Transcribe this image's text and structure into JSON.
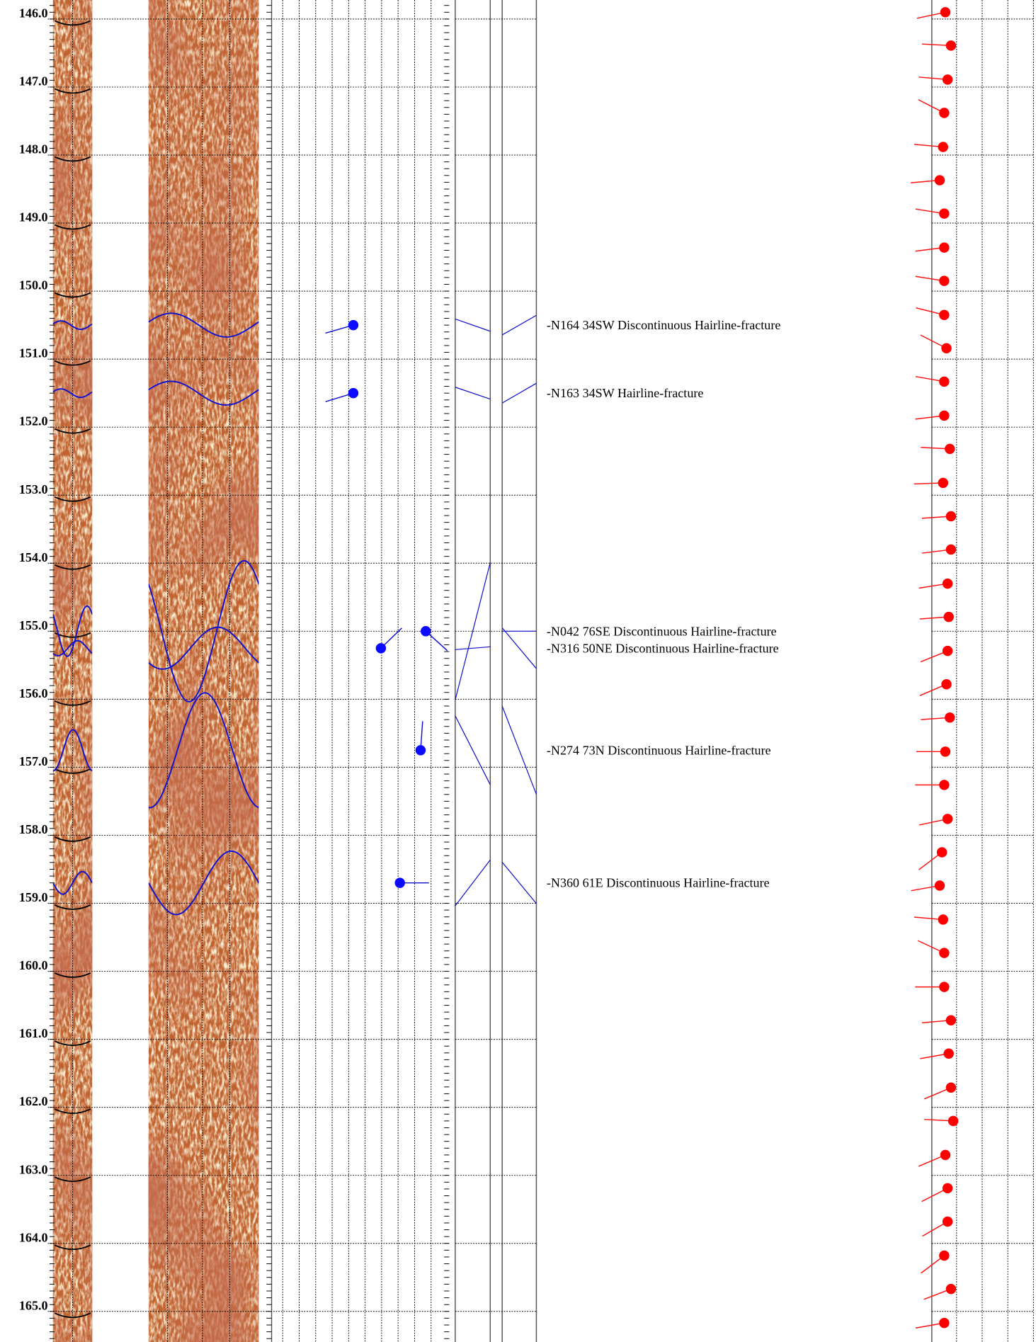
{
  "depth_axis": {
    "range": [
      145.72,
      165.45
    ],
    "minor_step": 0.1,
    "ticks": [
      {
        "value": 146,
        "label": "146.0"
      },
      {
        "value": 147,
        "label": "147.0"
      },
      {
        "value": 148,
        "label": "148.0"
      },
      {
        "value": 149,
        "label": "149.0"
      },
      {
        "value": 150,
        "label": "150.0"
      },
      {
        "value": 151,
        "label": "151.0"
      },
      {
        "value": 152,
        "label": "152.0"
      },
      {
        "value": 153,
        "label": "153.0"
      },
      {
        "value": 154,
        "label": "154.0"
      },
      {
        "value": 155,
        "label": "155.0"
      },
      {
        "value": 156,
        "label": "156.0"
      },
      {
        "value": 157,
        "label": "157.0"
      },
      {
        "value": 158,
        "label": "158.0"
      },
      {
        "value": 159,
        "label": "159.0"
      },
      {
        "value": 160,
        "label": "160.0"
      },
      {
        "value": 161,
        "label": "161.0"
      },
      {
        "value": 162,
        "label": "162.0"
      },
      {
        "value": 163,
        "label": "163.0"
      },
      {
        "value": 164,
        "label": "164.0"
      },
      {
        "value": 165,
        "label": "165.0"
      }
    ]
  },
  "fractures": [
    {
      "depth": 150.5,
      "dip": 34,
      "dip_direction": 254,
      "label": "-N164 34SW Discontinuous Hairline-fracture"
    },
    {
      "depth": 151.5,
      "dip": 34,
      "dip_direction": 253,
      "label": "-N163 34SW Hairline-fracture"
    },
    {
      "depth": 155.0,
      "dip": 76,
      "dip_direction": 132,
      "label": "-N042 76SE Discontinuous Hairline-fracture"
    },
    {
      "depth": 155.25,
      "dip": 50,
      "dip_direction": 46,
      "label": "-N316 50NE Discontinuous Hairline-fracture"
    },
    {
      "depth": 156.75,
      "dip": 73,
      "dip_direction": 4,
      "label": "-N274 73N Discontinuous Hairline-fracture"
    },
    {
      "depth": 158.7,
      "dip": 61,
      "dip_direction": 90,
      "label": "-N360 61E Discontinuous Hairline-fracture"
    }
  ],
  "red_tadpoles": [
    {
      "depth": 145.9,
      "dip": 12,
      "dip_direction": 258
    },
    {
      "depth": 146.39,
      "dip": 17,
      "dip_direction": 273
    },
    {
      "depth": 146.89,
      "dip": 14,
      "dip_direction": 275
    },
    {
      "depth": 147.38,
      "dip": 11,
      "dip_direction": 297
    },
    {
      "depth": 147.88,
      "dip": 10,
      "dip_direction": 275
    },
    {
      "depth": 148.37,
      "dip": 7,
      "dip_direction": 265
    },
    {
      "depth": 148.86,
      "dip": 11,
      "dip_direction": 279
    },
    {
      "depth": 149.36,
      "dip": 11,
      "dip_direction": 263
    },
    {
      "depth": 149.85,
      "dip": 11,
      "dip_direction": 279
    },
    {
      "depth": 150.35,
      "dip": 11,
      "dip_direction": 284
    },
    {
      "depth": 150.84,
      "dip": 13,
      "dip_direction": 297
    },
    {
      "depth": 151.33,
      "dip": 11,
      "dip_direction": 280
    },
    {
      "depth": 151.83,
      "dip": 11,
      "dip_direction": 263
    },
    {
      "depth": 152.32,
      "dip": 16,
      "dip_direction": 273
    },
    {
      "depth": 152.82,
      "dip": 10,
      "dip_direction": 268
    },
    {
      "depth": 153.31,
      "dip": 17,
      "dip_direction": 266
    },
    {
      "depth": 153.8,
      "dip": 17,
      "dip_direction": 263
    },
    {
      "depth": 154.3,
      "dip": 14,
      "dip_direction": 261
    },
    {
      "depth": 154.79,
      "dip": 15,
      "dip_direction": 266
    },
    {
      "depth": 155.29,
      "dip": 14,
      "dip_direction": 248
    },
    {
      "depth": 155.78,
      "dip": 13,
      "dip_direction": 247
    },
    {
      "depth": 156.27,
      "dip": 16,
      "dip_direction": 266
    },
    {
      "depth": 156.77,
      "dip": 12,
      "dip_direction": 270
    },
    {
      "depth": 157.26,
      "dip": 11,
      "dip_direction": 270
    },
    {
      "depth": 157.76,
      "dip": 14,
      "dip_direction": 258
    },
    {
      "depth": 158.25,
      "dip": 9,
      "dip_direction": 233
    },
    {
      "depth": 158.74,
      "dip": 7,
      "dip_direction": 260
    },
    {
      "depth": 159.24,
      "dip": 10,
      "dip_direction": 275
    },
    {
      "depth": 159.73,
      "dip": 11,
      "dip_direction": 295
    },
    {
      "depth": 160.23,
      "dip": 11,
      "dip_direction": 270
    },
    {
      "depth": 160.72,
      "dip": 17,
      "dip_direction": 265
    },
    {
      "depth": 161.21,
      "dip": 15,
      "dip_direction": 260
    },
    {
      "depth": 161.71,
      "dip": 17,
      "dip_direction": 247
    },
    {
      "depth": 162.2,
      "dip": 19,
      "dip_direction": 273
    },
    {
      "depth": 162.7,
      "dip": 12,
      "dip_direction": 247
    },
    {
      "depth": 163.19,
      "dip": 14,
      "dip_direction": 243
    },
    {
      "depth": 163.68,
      "dip": 14,
      "dip_direction": 240
    },
    {
      "depth": 164.18,
      "dip": 11,
      "dip_direction": 233
    },
    {
      "depth": 164.67,
      "dip": 17,
      "dip_direction": 249
    },
    {
      "depth": 165.17,
      "dip": 11,
      "dip_direction": 260
    }
  ]
}
